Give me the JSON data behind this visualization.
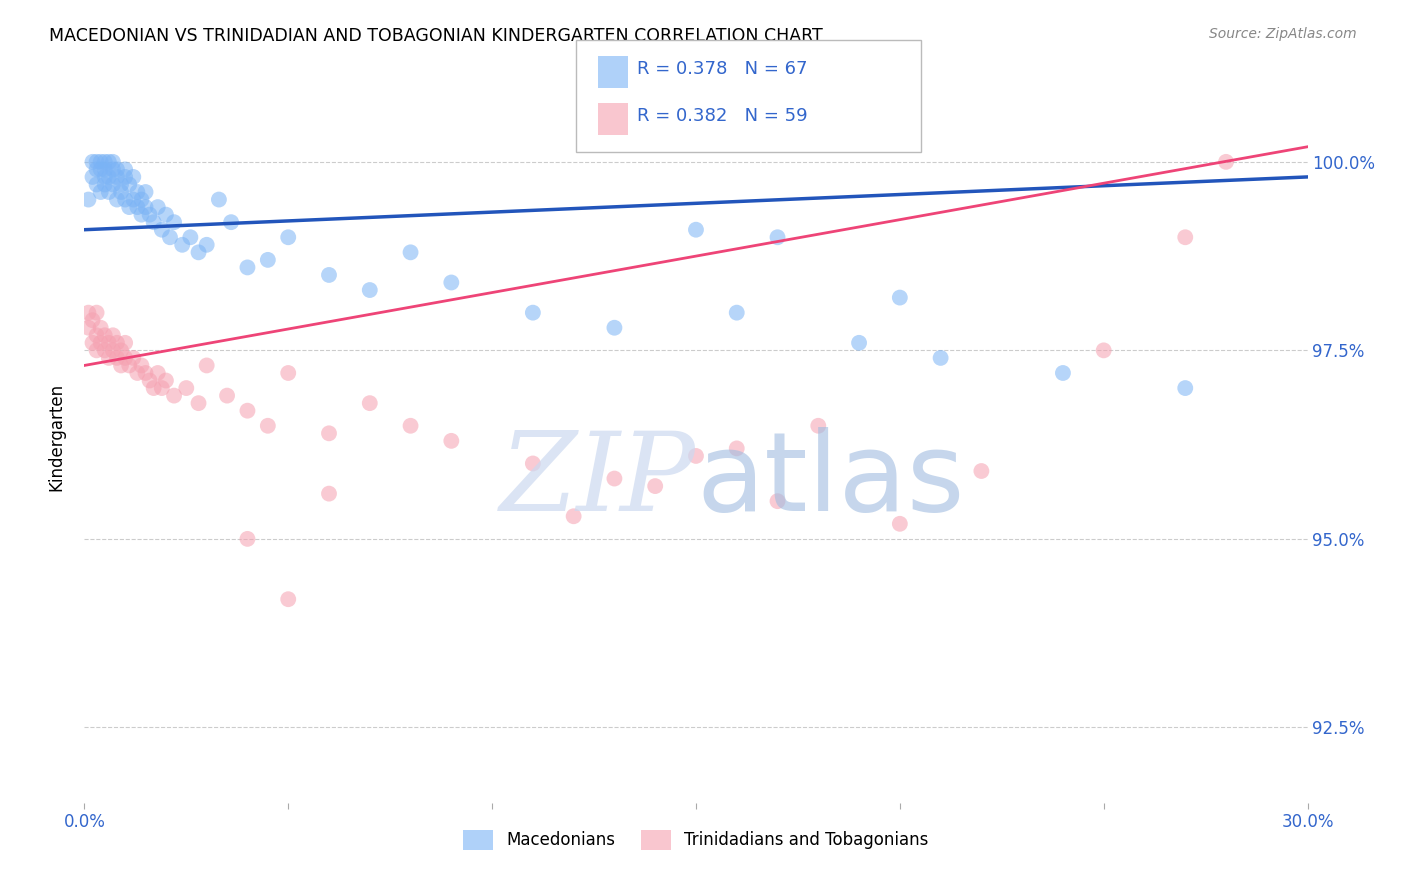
{
  "title": "MACEDONIAN VS TRINIDADIAN AND TOBAGONIAN KINDERGARTEN CORRELATION CHART",
  "source": "Source: ZipAtlas.com",
  "ylabel": "Kindergarten",
  "legend_blue_r": "0.378",
  "legend_blue_n": "67",
  "legend_pink_r": "0.382",
  "legend_pink_n": "59",
  "legend_blue_label": "Macedonians",
  "legend_pink_label": "Trinidadians and Tobagonians",
  "blue_color": "#7ab3f5",
  "pink_color": "#f5a0b0",
  "blue_line_color": "#2255bb",
  "pink_line_color": "#ee4477",
  "axis_label_color": "#3366cc",
  "xlim": [
    0.0,
    0.3
  ],
  "ylim": [
    91.5,
    101.2
  ],
  "ytick_vals": [
    92.5,
    95.0,
    97.5,
    100.0
  ],
  "blue_scatter_x": [
    0.001,
    0.002,
    0.002,
    0.003,
    0.003,
    0.003,
    0.004,
    0.004,
    0.004,
    0.005,
    0.005,
    0.005,
    0.005,
    0.006,
    0.006,
    0.006,
    0.007,
    0.007,
    0.007,
    0.008,
    0.008,
    0.008,
    0.009,
    0.009,
    0.01,
    0.01,
    0.01,
    0.011,
    0.011,
    0.012,
    0.012,
    0.013,
    0.013,
    0.014,
    0.014,
    0.015,
    0.015,
    0.016,
    0.017,
    0.018,
    0.019,
    0.02,
    0.021,
    0.022,
    0.024,
    0.026,
    0.028,
    0.03,
    0.033,
    0.036,
    0.04,
    0.045,
    0.05,
    0.06,
    0.07,
    0.08,
    0.09,
    0.11,
    0.13,
    0.15,
    0.17,
    0.19,
    0.21,
    0.24,
    0.27,
    0.2,
    0.16
  ],
  "blue_scatter_y": [
    99.5,
    100.0,
    99.8,
    99.9,
    100.0,
    99.7,
    99.9,
    100.0,
    99.6,
    99.8,
    100.0,
    99.9,
    99.7,
    99.8,
    100.0,
    99.6,
    99.7,
    99.9,
    100.0,
    99.5,
    99.8,
    99.9,
    99.6,
    99.7,
    99.5,
    99.8,
    99.9,
    99.4,
    99.7,
    99.5,
    99.8,
    99.4,
    99.6,
    99.3,
    99.5,
    99.4,
    99.6,
    99.3,
    99.2,
    99.4,
    99.1,
    99.3,
    99.0,
    99.2,
    98.9,
    99.0,
    98.8,
    98.9,
    99.5,
    99.2,
    98.6,
    98.7,
    99.0,
    98.5,
    98.3,
    98.8,
    98.4,
    98.0,
    97.8,
    99.1,
    99.0,
    97.6,
    97.4,
    97.2,
    97.0,
    98.2,
    98.0
  ],
  "pink_scatter_x": [
    0.001,
    0.001,
    0.002,
    0.002,
    0.003,
    0.003,
    0.003,
    0.004,
    0.004,
    0.005,
    0.005,
    0.006,
    0.006,
    0.007,
    0.007,
    0.008,
    0.008,
    0.009,
    0.009,
    0.01,
    0.01,
    0.011,
    0.012,
    0.013,
    0.014,
    0.015,
    0.016,
    0.017,
    0.018,
    0.019,
    0.02,
    0.022,
    0.025,
    0.028,
    0.03,
    0.035,
    0.04,
    0.045,
    0.05,
    0.06,
    0.07,
    0.08,
    0.09,
    0.11,
    0.13,
    0.15,
    0.17,
    0.2,
    0.05,
    0.04,
    0.06,
    0.12,
    0.14,
    0.16,
    0.18,
    0.22,
    0.25,
    0.28,
    0.27
  ],
  "pink_scatter_y": [
    97.8,
    98.0,
    97.6,
    97.9,
    97.5,
    97.7,
    98.0,
    97.6,
    97.8,
    97.5,
    97.7,
    97.4,
    97.6,
    97.5,
    97.7,
    97.4,
    97.6,
    97.3,
    97.5,
    97.4,
    97.6,
    97.3,
    97.4,
    97.2,
    97.3,
    97.2,
    97.1,
    97.0,
    97.2,
    97.0,
    97.1,
    96.9,
    97.0,
    96.8,
    97.3,
    96.9,
    96.7,
    96.5,
    97.2,
    96.4,
    96.8,
    96.5,
    96.3,
    96.0,
    95.8,
    96.1,
    95.5,
    95.2,
    94.2,
    95.0,
    95.6,
    95.3,
    95.7,
    96.2,
    96.5,
    95.9,
    97.5,
    100.0,
    99.0
  ],
  "blue_line_x": [
    0.0,
    0.3
  ],
  "blue_line_y": [
    99.1,
    99.8
  ],
  "pink_line_x": [
    0.0,
    0.3
  ],
  "pink_line_y": [
    97.3,
    100.2
  ]
}
